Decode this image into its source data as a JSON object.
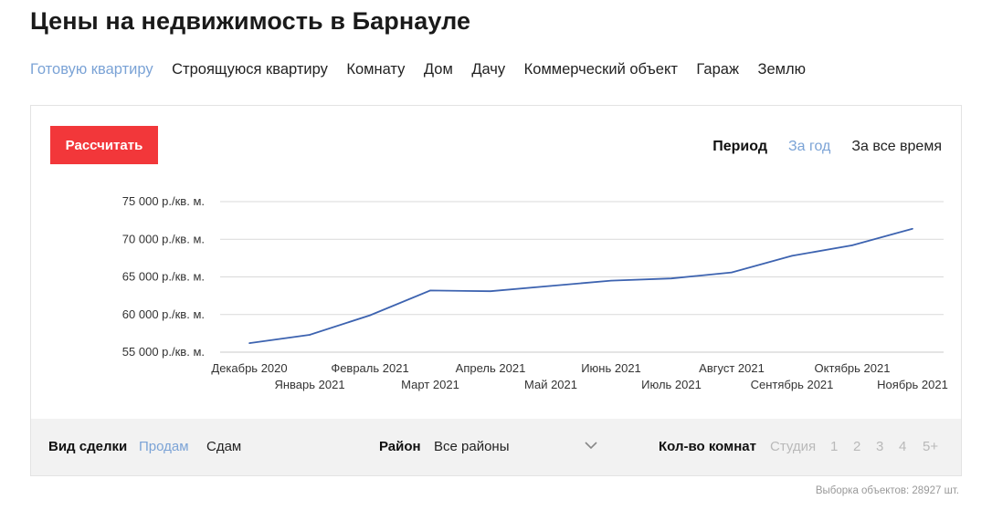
{
  "header": {
    "title": "Цены на недвижимость в Барнауле"
  },
  "tabs": [
    {
      "label": "Готовую квартиру",
      "active": true
    },
    {
      "label": "Строящуюся квартиру",
      "active": false
    },
    {
      "label": "Комнату",
      "active": false
    },
    {
      "label": "Дом",
      "active": false
    },
    {
      "label": "Дачу",
      "active": false
    },
    {
      "label": "Коммерческий объект",
      "active": false
    },
    {
      "label": "Гараж",
      "active": false
    },
    {
      "label": "Землю",
      "active": false
    }
  ],
  "card": {
    "calculate_label": "Рассчитать",
    "period": {
      "label": "Период",
      "options": [
        {
          "label": "За год",
          "active": true
        },
        {
          "label": "За все время",
          "active": false
        }
      ]
    }
  },
  "chart_data": {
    "type": "line",
    "x": [
      "Декабрь 2020",
      "Январь 2021",
      "Февраль 2021",
      "Март 2021",
      "Апрель 2021",
      "Май 2021",
      "Июнь 2021",
      "Июль 2021",
      "Август 2021",
      "Сентябрь 2021",
      "Октябрь 2021",
      "Ноябрь 2021"
    ],
    "series": [
      {
        "values": [
          56200,
          57300,
          59900,
          63200,
          63100,
          63800,
          64500,
          64800,
          65600,
          67800,
          69200,
          71400
        ]
      }
    ],
    "y_ticks": [
      {
        "value": 75000,
        "label": "75 000 р./кв. м."
      },
      {
        "value": 70000,
        "label": "70 000 р./кв. м."
      },
      {
        "value": 65000,
        "label": "65 000 р./кв. м."
      },
      {
        "value": 60000,
        "label": "60 000 р./кв. м."
      },
      {
        "value": 55000,
        "label": "55 000 р./кв. м."
      }
    ],
    "ylim": [
      55000,
      75000
    ],
    "grid": true,
    "line_color": "#3d63b0"
  },
  "filters": {
    "deal": {
      "label": "Вид сделки",
      "options": [
        {
          "label": "Продам",
          "active": true
        },
        {
          "label": "Сдам",
          "active": false
        }
      ]
    },
    "district": {
      "label": "Район",
      "value": "Все районы"
    },
    "rooms": {
      "label": "Кол-во комнат",
      "options": [
        "Студия",
        "1",
        "2",
        "3",
        "4",
        "5+"
      ]
    }
  },
  "footer": {
    "count_text": "Выборка объектов: 28927 шт."
  },
  "colors": {
    "accent": "#7ba3d6",
    "button": "#f2373a",
    "line": "#3d63b0",
    "grid": "#d9d9d9"
  },
  "icons": {
    "district_dropdown": "chevron-down-icon"
  }
}
